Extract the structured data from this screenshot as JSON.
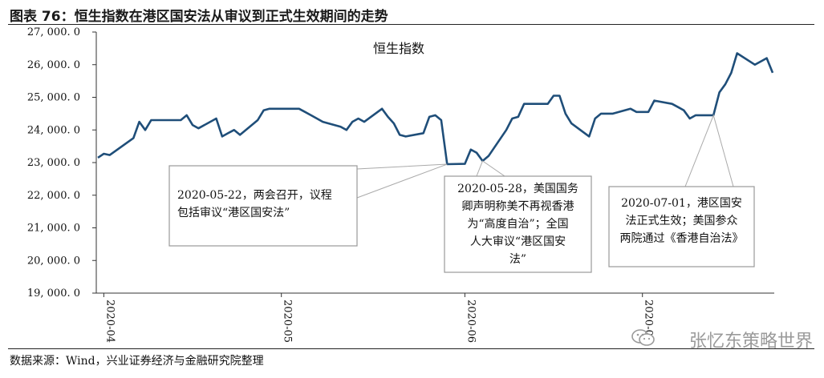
{
  "figure_title": "图表 76：恒生指数在港区国安法从审议到正式生效期间的走势",
  "source_note": "数据来源：Wind，兴业证券经济与金融研究院整理",
  "watermark_text": "张忆东策略世界",
  "colors": {
    "line": "#1f4e79",
    "axis": "#333333",
    "annotation_border": "#999999",
    "leader": "#aaaaaa"
  },
  "chart_data": {
    "type": "line",
    "title": "",
    "xlabel": "",
    "ylabel": "",
    "ylim": [
      19000,
      27000
    ],
    "y_ticks": [
      19000,
      20000,
      21000,
      22000,
      23000,
      24000,
      25000,
      26000,
      27000
    ],
    "y_tick_labels": [
      "19, 000. 0",
      "20, 000. 0",
      "21, 000. 0",
      "22, 000. 0",
      "23, 000. 0",
      "24, 000. 0",
      "25, 000. 0",
      "26, 000. 0",
      "27, 000. 0"
    ],
    "x_ticks": [
      "2020-04-01",
      "2020-05-01",
      "2020-06-01",
      "2020-07-01"
    ],
    "x_tick_labels": [
      "2020-04",
      "2020-05",
      "2020-06",
      "2020-07"
    ],
    "grid": false,
    "series": [
      {
        "name": "恒生指数",
        "points": [
          [
            "2020-03-31",
            23150
          ],
          [
            "2020-04-01",
            23270
          ],
          [
            "2020-04-02",
            23230
          ],
          [
            "2020-04-06",
            23750
          ],
          [
            "2020-04-07",
            24250
          ],
          [
            "2020-04-08",
            24000
          ],
          [
            "2020-04-09",
            24300
          ],
          [
            "2020-04-14",
            24300
          ],
          [
            "2020-04-15",
            24450
          ],
          [
            "2020-04-16",
            24150
          ],
          [
            "2020-04-17",
            24050
          ],
          [
            "2020-04-20",
            24350
          ],
          [
            "2020-04-21",
            23800
          ],
          [
            "2020-04-22",
            23900
          ],
          [
            "2020-04-23",
            24000
          ],
          [
            "2020-04-24",
            23850
          ],
          [
            "2020-04-27",
            24300
          ],
          [
            "2020-04-28",
            24600
          ],
          [
            "2020-04-29",
            24650
          ],
          [
            "2020-05-04",
            24650
          ],
          [
            "2020-05-05",
            24550
          ],
          [
            "2020-05-06",
            24450
          ],
          [
            "2020-05-07",
            24350
          ],
          [
            "2020-05-08",
            24250
          ],
          [
            "2020-05-11",
            24100
          ],
          [
            "2020-05-12",
            24000
          ],
          [
            "2020-05-13",
            24250
          ],
          [
            "2020-05-14",
            24350
          ],
          [
            "2020-05-15",
            24250
          ],
          [
            "2020-05-18",
            24650
          ],
          [
            "2020-05-19",
            24400
          ],
          [
            "2020-05-20",
            24200
          ],
          [
            "2020-05-21",
            23850
          ],
          [
            "2020-05-22",
            23800
          ],
          [
            "2020-05-25",
            23900
          ],
          [
            "2020-05-26",
            24400
          ],
          [
            "2020-05-27",
            24450
          ],
          [
            "2020-05-28",
            24300
          ],
          [
            "2020-05-29",
            22950
          ],
          [
            "2020-06-01",
            22960
          ],
          [
            "2020-06-02",
            23400
          ],
          [
            "2020-06-03",
            23300
          ],
          [
            "2020-06-04",
            23050
          ],
          [
            "2020-06-05",
            23200
          ],
          [
            "2020-06-08",
            24000
          ],
          [
            "2020-06-09",
            24350
          ],
          [
            "2020-06-10",
            24400
          ],
          [
            "2020-06-11",
            24800
          ],
          [
            "2020-06-12",
            24800
          ],
          [
            "2020-06-15",
            24800
          ],
          [
            "2020-06-16",
            25050
          ],
          [
            "2020-06-17",
            25050
          ],
          [
            "2020-06-18",
            24500
          ],
          [
            "2020-06-19",
            24200
          ],
          [
            "2020-06-22",
            23800
          ],
          [
            "2020-06-23",
            24350
          ],
          [
            "2020-06-24",
            24500
          ],
          [
            "2020-06-26",
            24500
          ],
          [
            "2020-06-29",
            24650
          ],
          [
            "2020-06-30",
            24550
          ],
          [
            "2020-07-02",
            24550
          ],
          [
            "2020-07-03",
            24900
          ],
          [
            "2020-07-06",
            24800
          ],
          [
            "2020-07-07",
            24700
          ],
          [
            "2020-07-08",
            24600
          ],
          [
            "2020-07-09",
            24350
          ],
          [
            "2020-07-10",
            24450
          ],
          [
            "2020-07-13",
            24450
          ],
          [
            "2020-07-14",
            25150
          ],
          [
            "2020-07-15",
            25400
          ],
          [
            "2020-07-16",
            25750
          ],
          [
            "2020-07-17",
            26350
          ],
          [
            "2020-07-20",
            26000
          ],
          [
            "2020-07-21",
            26100
          ],
          [
            "2020-07-22",
            26200
          ],
          [
            "2020-07-23",
            25750
          ]
        ]
      }
    ],
    "annotations": [
      {
        "lines": [
          "2020-05-22，两会召开，议程",
          "包括审议“港区国安法”"
        ],
        "target": [
          "2020-05-29",
          22950
        ]
      },
      {
        "lines": [
          "2020-05-28，美国国务",
          "卿声明称美不再视香港",
          "为“高度自治”；全国",
          "人大审议“港区国安",
          "法”"
        ],
        "target": [
          "2020-06-04",
          23050
        ]
      },
      {
        "lines": [
          "2020-07-01，港区国安",
          "法正式生效；美国参众",
          "两院通过《香港自治法》"
        ],
        "target": [
          "2020-07-13",
          24450
        ]
      }
    ]
  }
}
